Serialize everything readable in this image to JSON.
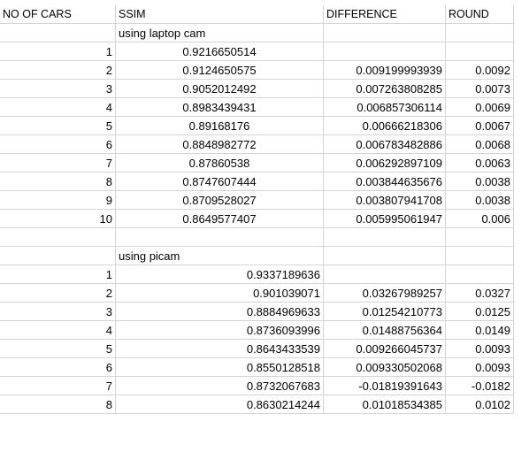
{
  "headers": {
    "cars": "NO OF CARS",
    "ssim": "SSIM",
    "diff": "DIFFERENCE",
    "round": "ROUND"
  },
  "section1": {
    "label": "using laptop cam",
    "rows": [
      {
        "cars": "1",
        "ssim": "0.9216650514",
        "diff": "",
        "round": ""
      },
      {
        "cars": "2",
        "ssim": "0.9124650575",
        "diff": "0.009199993939",
        "round": "0.0092"
      },
      {
        "cars": "3",
        "ssim": "0.9052012492",
        "diff": "0.007263808285",
        "round": "0.0073"
      },
      {
        "cars": "4",
        "ssim": "0.8983439431",
        "diff": "0.006857306114",
        "round": "0.0069"
      },
      {
        "cars": "5",
        "ssim": "0.89168176",
        "diff": "0.00666218306",
        "round": "0.0067"
      },
      {
        "cars": "6",
        "ssim": "0.8848982772",
        "diff": "0.006783482886",
        "round": "0.0068"
      },
      {
        "cars": "7",
        "ssim": "0.87860538",
        "diff": "0.006292897109",
        "round": "0.0063"
      },
      {
        "cars": "8",
        "ssim": "0.8747607444",
        "diff": "0.003844635676",
        "round": "0.0038"
      },
      {
        "cars": "9",
        "ssim": "0.8709528027",
        "diff": "0.003807941708",
        "round": "0.0038"
      },
      {
        "cars": "10",
        "ssim": "0.8649577407",
        "diff": "0.005995061947",
        "round": "0.006"
      }
    ]
  },
  "section2": {
    "label": "using picam",
    "rows": [
      {
        "cars": "1",
        "ssim": "0.9337189636",
        "diff": "",
        "round": ""
      },
      {
        "cars": "2",
        "ssim": "0.901039071",
        "diff": "0.03267989257",
        "round": "0.0327"
      },
      {
        "cars": "3",
        "ssim": "0.8884969633",
        "diff": "0.01254210773",
        "round": "0.0125"
      },
      {
        "cars": "4",
        "ssim": "0.8736093996",
        "diff": "0.01488756364",
        "round": "0.0149"
      },
      {
        "cars": "5",
        "ssim": "0.8643433539",
        "diff": "0.009266045737",
        "round": "0.0093"
      },
      {
        "cars": "6",
        "ssim": "0.8550128518",
        "diff": "0.009330502068",
        "round": "0.0093"
      },
      {
        "cars": "7",
        "ssim": "0.8732067683",
        "diff": "-0.01819391643",
        "round": "-0.0182"
      },
      {
        "cars": "8",
        "ssim": "0.8630214244",
        "diff": "0.01018534385",
        "round": "0.0102"
      }
    ]
  }
}
